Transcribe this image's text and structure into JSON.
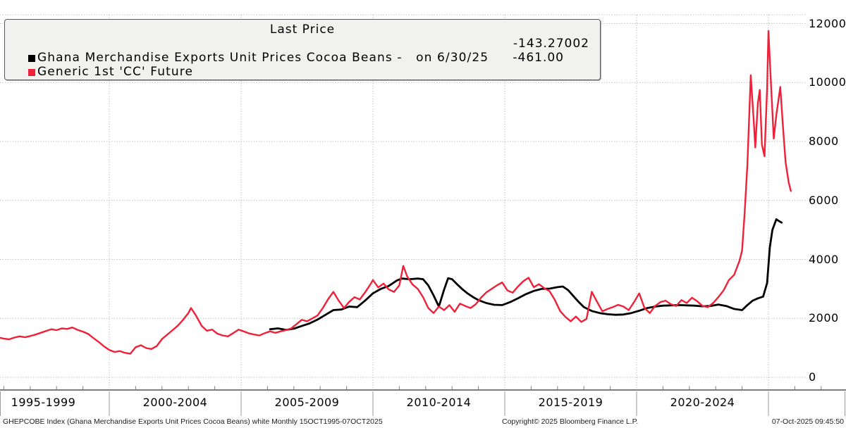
{
  "legend": {
    "title": "Last Price",
    "series": [
      {
        "label": "Ghana Merchandise Exports Unit Prices Cocoa Beans -   on 6/30/25",
        "value": "-143.27002",
        "color": "#000000"
      },
      {
        "label": "Generic 1st 'CC' Future",
        "value": "-461.00",
        "color": "#ef2139"
      }
    ]
  },
  "y_axis": {
    "ticks": [
      "12000",
      "10000",
      "8000",
      "6000",
      "4000",
      "2000",
      "0"
    ]
  },
  "x_axis": {
    "labels": [
      "1995-1999",
      "2000-2004",
      "2005-2009",
      "2010-2014",
      "2015-2019",
      "2020-2024"
    ]
  },
  "footer": {
    "left": "GHEPCOBE Index (Ghana Merchandise Exports Unit Prices Cocoa Beans) white Monthly 15OCT1995-07OCT2025",
    "center": "Copyright© 2025 Bloomberg Finance L.P.",
    "right": "07-Oct-2025 09:45:50"
  },
  "chart_data": {
    "type": "line",
    "title": "Last Price",
    "x_unit": "year (decimal, Oct 1995 - Oct 2025)",
    "xlim": [
      1995.8,
      2027.9
    ],
    "ylim": [
      0,
      12400
    ],
    "y_ticks": [
      12000,
      10000,
      8000,
      6000,
      4000,
      2000,
      0
    ],
    "x_separator_years": [
      2000,
      2005,
      2010,
      2015,
      2020,
      2025
    ],
    "x_group_labels": [
      "1995-1999",
      "2000-2004",
      "2005-2009",
      "2010-2014",
      "2015-2019",
      "2020-2024"
    ],
    "grid": "dotted",
    "legend_position": "top-left",
    "series": [
      {
        "name": "Ghana Merchandise Exports Unit Prices Cocoa Beans",
        "color": "#000000",
        "note": "on 6/30/25",
        "net_change": "-143.27002",
        "points": [
          [
            2006.1,
            1630
          ],
          [
            2006.4,
            1660
          ],
          [
            2006.7,
            1610
          ],
          [
            2007.0,
            1650
          ],
          [
            2007.3,
            1740
          ],
          [
            2007.6,
            1830
          ],
          [
            2007.9,
            1960
          ],
          [
            2008.2,
            2120
          ],
          [
            2008.5,
            2280
          ],
          [
            2008.8,
            2300
          ],
          [
            2009.1,
            2400
          ],
          [
            2009.4,
            2380
          ],
          [
            2009.7,
            2600
          ],
          [
            2010.0,
            2850
          ],
          [
            2010.3,
            3000
          ],
          [
            2010.6,
            3100
          ],
          [
            2010.9,
            3280
          ],
          [
            2011.1,
            3350
          ],
          [
            2011.4,
            3330
          ],
          [
            2011.7,
            3350
          ],
          [
            2011.9,
            3330
          ],
          [
            2012.1,
            3120
          ],
          [
            2012.3,
            2780
          ],
          [
            2012.5,
            2400
          ],
          [
            2012.7,
            2980
          ],
          [
            2012.85,
            3360
          ],
          [
            2013.0,
            3330
          ],
          [
            2013.2,
            3150
          ],
          [
            2013.4,
            2980
          ],
          [
            2013.6,
            2840
          ],
          [
            2013.8,
            2720
          ],
          [
            2014.0,
            2620
          ],
          [
            2014.3,
            2520
          ],
          [
            2014.6,
            2460
          ],
          [
            2014.9,
            2450
          ],
          [
            2015.2,
            2550
          ],
          [
            2015.5,
            2680
          ],
          [
            2015.8,
            2820
          ],
          [
            2016.1,
            2930
          ],
          [
            2016.4,
            3000
          ],
          [
            2016.7,
            3010
          ],
          [
            2017.0,
            3060
          ],
          [
            2017.2,
            3080
          ],
          [
            2017.4,
            2960
          ],
          [
            2017.6,
            2760
          ],
          [
            2017.8,
            2560
          ],
          [
            2018.0,
            2380
          ],
          [
            2018.3,
            2250
          ],
          [
            2018.6,
            2180
          ],
          [
            2018.9,
            2140
          ],
          [
            2019.2,
            2120
          ],
          [
            2019.5,
            2130
          ],
          [
            2019.8,
            2180
          ],
          [
            2020.1,
            2260
          ],
          [
            2020.4,
            2350
          ],
          [
            2020.7,
            2400
          ],
          [
            2021.0,
            2430
          ],
          [
            2021.3,
            2440
          ],
          [
            2021.6,
            2450
          ],
          [
            2021.9,
            2440
          ],
          [
            2022.2,
            2430
          ],
          [
            2022.5,
            2410
          ],
          [
            2022.8,
            2420
          ],
          [
            2023.1,
            2470
          ],
          [
            2023.4,
            2420
          ],
          [
            2023.7,
            2320
          ],
          [
            2024.0,
            2280
          ],
          [
            2024.2,
            2450
          ],
          [
            2024.4,
            2600
          ],
          [
            2024.6,
            2680
          ],
          [
            2024.8,
            2740
          ],
          [
            2024.95,
            3200
          ],
          [
            2025.05,
            4400
          ],
          [
            2025.15,
            5000
          ],
          [
            2025.3,
            5360
          ],
          [
            2025.4,
            5300
          ],
          [
            2025.5,
            5250
          ]
        ]
      },
      {
        "name": "Generic 1st 'CC' Future",
        "color": "#ef2139",
        "net_change": "-461.00",
        "points": [
          [
            1995.8,
            1340
          ],
          [
            1996.0,
            1310
          ],
          [
            1996.2,
            1290
          ],
          [
            1996.4,
            1350
          ],
          [
            1996.6,
            1390
          ],
          [
            1996.8,
            1360
          ],
          [
            1997.0,
            1400
          ],
          [
            1997.2,
            1450
          ],
          [
            1997.4,
            1510
          ],
          [
            1997.6,
            1570
          ],
          [
            1997.8,
            1630
          ],
          [
            1998.0,
            1600
          ],
          [
            1998.2,
            1660
          ],
          [
            1998.4,
            1640
          ],
          [
            1998.6,
            1690
          ],
          [
            1998.8,
            1610
          ],
          [
            1999.0,
            1550
          ],
          [
            1999.2,
            1470
          ],
          [
            1999.4,
            1330
          ],
          [
            1999.6,
            1200
          ],
          [
            1999.8,
            1050
          ],
          [
            2000.0,
            930
          ],
          [
            2000.2,
            860
          ],
          [
            2000.4,
            890
          ],
          [
            2000.6,
            830
          ],
          [
            2000.8,
            800
          ],
          [
            2001.0,
            1020
          ],
          [
            2001.2,
            1090
          ],
          [
            2001.4,
            990
          ],
          [
            2001.6,
            960
          ],
          [
            2001.8,
            1060
          ],
          [
            2002.0,
            1300
          ],
          [
            2002.2,
            1450
          ],
          [
            2002.4,
            1600
          ],
          [
            2002.6,
            1750
          ],
          [
            2002.8,
            1950
          ],
          [
            2003.0,
            2180
          ],
          [
            2003.1,
            2350
          ],
          [
            2003.3,
            2080
          ],
          [
            2003.5,
            1750
          ],
          [
            2003.7,
            1580
          ],
          [
            2003.9,
            1620
          ],
          [
            2004.1,
            1480
          ],
          [
            2004.3,
            1420
          ],
          [
            2004.5,
            1390
          ],
          [
            2004.7,
            1500
          ],
          [
            2004.9,
            1620
          ],
          [
            2005.1,
            1560
          ],
          [
            2005.3,
            1490
          ],
          [
            2005.5,
            1450
          ],
          [
            2005.7,
            1420
          ],
          [
            2005.9,
            1500
          ],
          [
            2006.1,
            1560
          ],
          [
            2006.3,
            1510
          ],
          [
            2006.5,
            1560
          ],
          [
            2006.7,
            1600
          ],
          [
            2006.9,
            1660
          ],
          [
            2007.1,
            1800
          ],
          [
            2007.3,
            1950
          ],
          [
            2007.5,
            1900
          ],
          [
            2007.7,
            2000
          ],
          [
            2007.9,
            2100
          ],
          [
            2008.1,
            2350
          ],
          [
            2008.3,
            2650
          ],
          [
            2008.5,
            2900
          ],
          [
            2008.7,
            2600
          ],
          [
            2008.9,
            2350
          ],
          [
            2009.1,
            2560
          ],
          [
            2009.3,
            2720
          ],
          [
            2009.5,
            2640
          ],
          [
            2009.7,
            2880
          ],
          [
            2009.9,
            3150
          ],
          [
            2010.0,
            3300
          ],
          [
            2010.2,
            3050
          ],
          [
            2010.4,
            3180
          ],
          [
            2010.6,
            2980
          ],
          [
            2010.8,
            2900
          ],
          [
            2011.0,
            3120
          ],
          [
            2011.15,
            3780
          ],
          [
            2011.3,
            3420
          ],
          [
            2011.5,
            3150
          ],
          [
            2011.7,
            3000
          ],
          [
            2011.9,
            2720
          ],
          [
            2012.1,
            2350
          ],
          [
            2012.3,
            2180
          ],
          [
            2012.5,
            2400
          ],
          [
            2012.7,
            2280
          ],
          [
            2012.9,
            2450
          ],
          [
            2013.1,
            2220
          ],
          [
            2013.3,
            2500
          ],
          [
            2013.5,
            2420
          ],
          [
            2013.7,
            2350
          ],
          [
            2013.9,
            2480
          ],
          [
            2014.1,
            2700
          ],
          [
            2014.3,
            2880
          ],
          [
            2014.5,
            3000
          ],
          [
            2014.7,
            3120
          ],
          [
            2014.9,
            3220
          ],
          [
            2015.1,
            2950
          ],
          [
            2015.3,
            2870
          ],
          [
            2015.5,
            3080
          ],
          [
            2015.7,
            3260
          ],
          [
            2015.9,
            3380
          ],
          [
            2016.1,
            3060
          ],
          [
            2016.3,
            3160
          ],
          [
            2016.5,
            3020
          ],
          [
            2016.7,
            2920
          ],
          [
            2016.9,
            2620
          ],
          [
            2017.1,
            2250
          ],
          [
            2017.3,
            2050
          ],
          [
            2017.5,
            1900
          ],
          [
            2017.7,
            2060
          ],
          [
            2017.9,
            1880
          ],
          [
            2018.1,
            1980
          ],
          [
            2018.3,
            2900
          ],
          [
            2018.5,
            2560
          ],
          [
            2018.7,
            2240
          ],
          [
            2018.9,
            2320
          ],
          [
            2019.1,
            2380
          ],
          [
            2019.3,
            2460
          ],
          [
            2019.5,
            2400
          ],
          [
            2019.7,
            2280
          ],
          [
            2019.9,
            2550
          ],
          [
            2020.1,
            2850
          ],
          [
            2020.3,
            2350
          ],
          [
            2020.5,
            2180
          ],
          [
            2020.7,
            2420
          ],
          [
            2020.9,
            2550
          ],
          [
            2021.1,
            2600
          ],
          [
            2021.3,
            2480
          ],
          [
            2021.5,
            2420
          ],
          [
            2021.7,
            2620
          ],
          [
            2021.9,
            2520
          ],
          [
            2022.1,
            2700
          ],
          [
            2022.3,
            2580
          ],
          [
            2022.5,
            2420
          ],
          [
            2022.7,
            2380
          ],
          [
            2022.9,
            2520
          ],
          [
            2023.1,
            2720
          ],
          [
            2023.3,
            2950
          ],
          [
            2023.5,
            3300
          ],
          [
            2023.7,
            3480
          ],
          [
            2023.9,
            3950
          ],
          [
            2024.0,
            4300
          ],
          [
            2024.1,
            5600
          ],
          [
            2024.2,
            7200
          ],
          [
            2024.33,
            10250
          ],
          [
            2024.45,
            8600
          ],
          [
            2024.5,
            7800
          ],
          [
            2024.6,
            9300
          ],
          [
            2024.67,
            9750
          ],
          [
            2024.75,
            7900
          ],
          [
            2024.85,
            7500
          ],
          [
            2024.95,
            9800
          ],
          [
            2025.0,
            11750
          ],
          [
            2025.1,
            9900
          ],
          [
            2025.2,
            8100
          ],
          [
            2025.3,
            8900
          ],
          [
            2025.45,
            9850
          ],
          [
            2025.55,
            8500
          ],
          [
            2025.65,
            7300
          ],
          [
            2025.77,
            6600
          ],
          [
            2025.85,
            6320
          ]
        ]
      }
    ]
  }
}
